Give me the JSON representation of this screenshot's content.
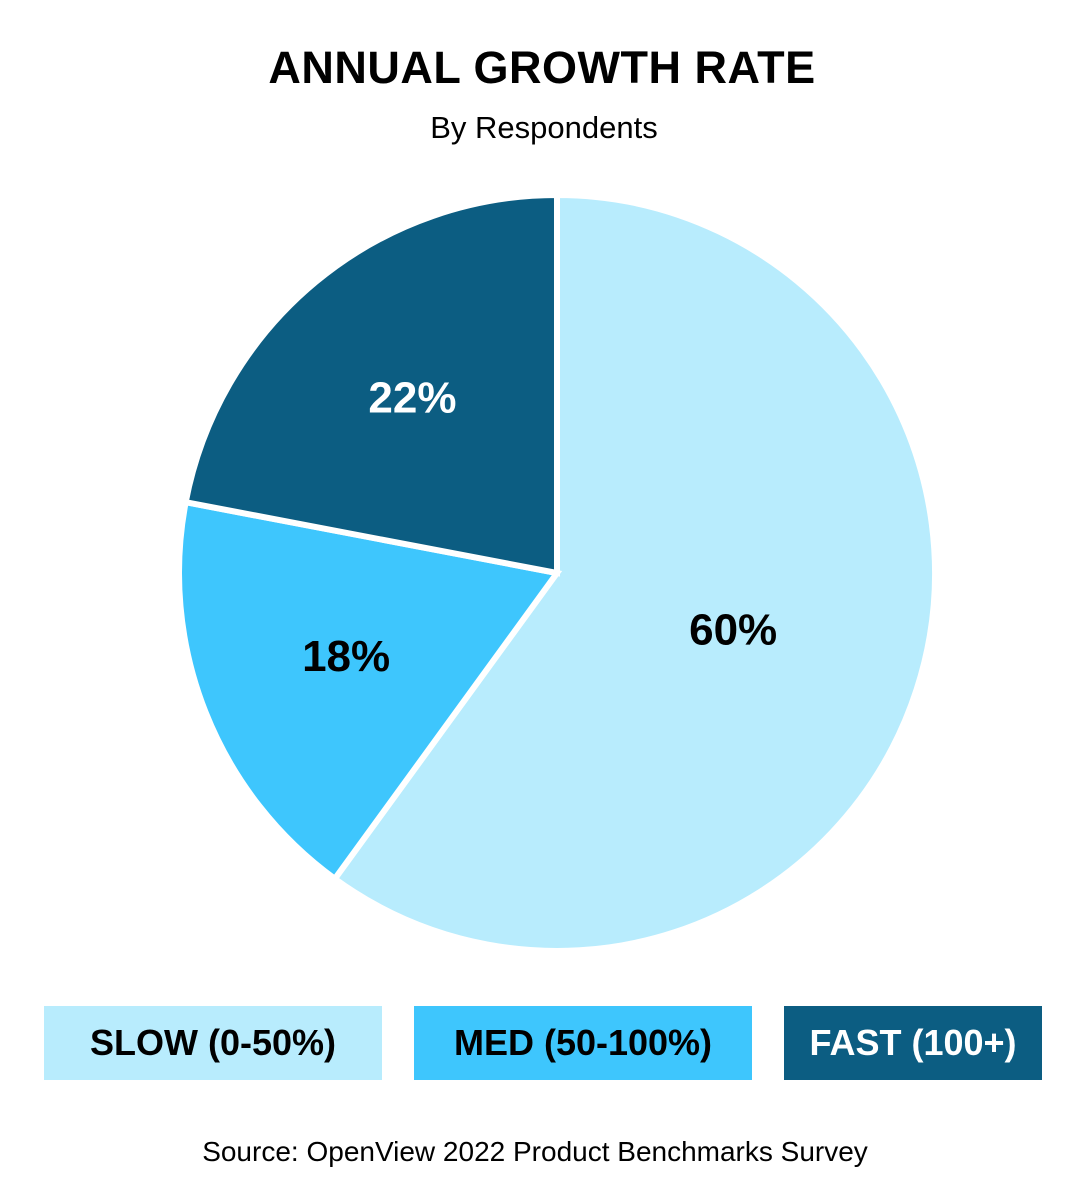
{
  "chart_data": {
    "type": "pie",
    "title": "ANNUAL GROWTH RATE",
    "subtitle": "By Respondents",
    "slices": [
      {
        "name": "SLOW (0-50%)",
        "value": 60,
        "label": "60%",
        "color": "#b8ecfd",
        "text_color": "#000000"
      },
      {
        "name": "MED (50-100%)",
        "value": 18,
        "label": "18%",
        "color": "#3ec6fd",
        "text_color": "#000000"
      },
      {
        "name": "FAST (100+)",
        "value": 22,
        "label": "22%",
        "color": "#0c5d82",
        "text_color": "#ffffff"
      }
    ],
    "legend": [
      {
        "label": "SLOW (0-50%)",
        "color": "#b8ecfd",
        "text_color": "#000000"
      },
      {
        "label": "MED (50-100%)",
        "color": "#3ec6fd",
        "text_color": "#000000"
      },
      {
        "label": "FAST (100+)",
        "color": "#0c5d82",
        "text_color": "#ffffff"
      }
    ],
    "legend_position": "bottom",
    "source": "Source: OpenView 2022 Product Benchmarks Survey"
  }
}
